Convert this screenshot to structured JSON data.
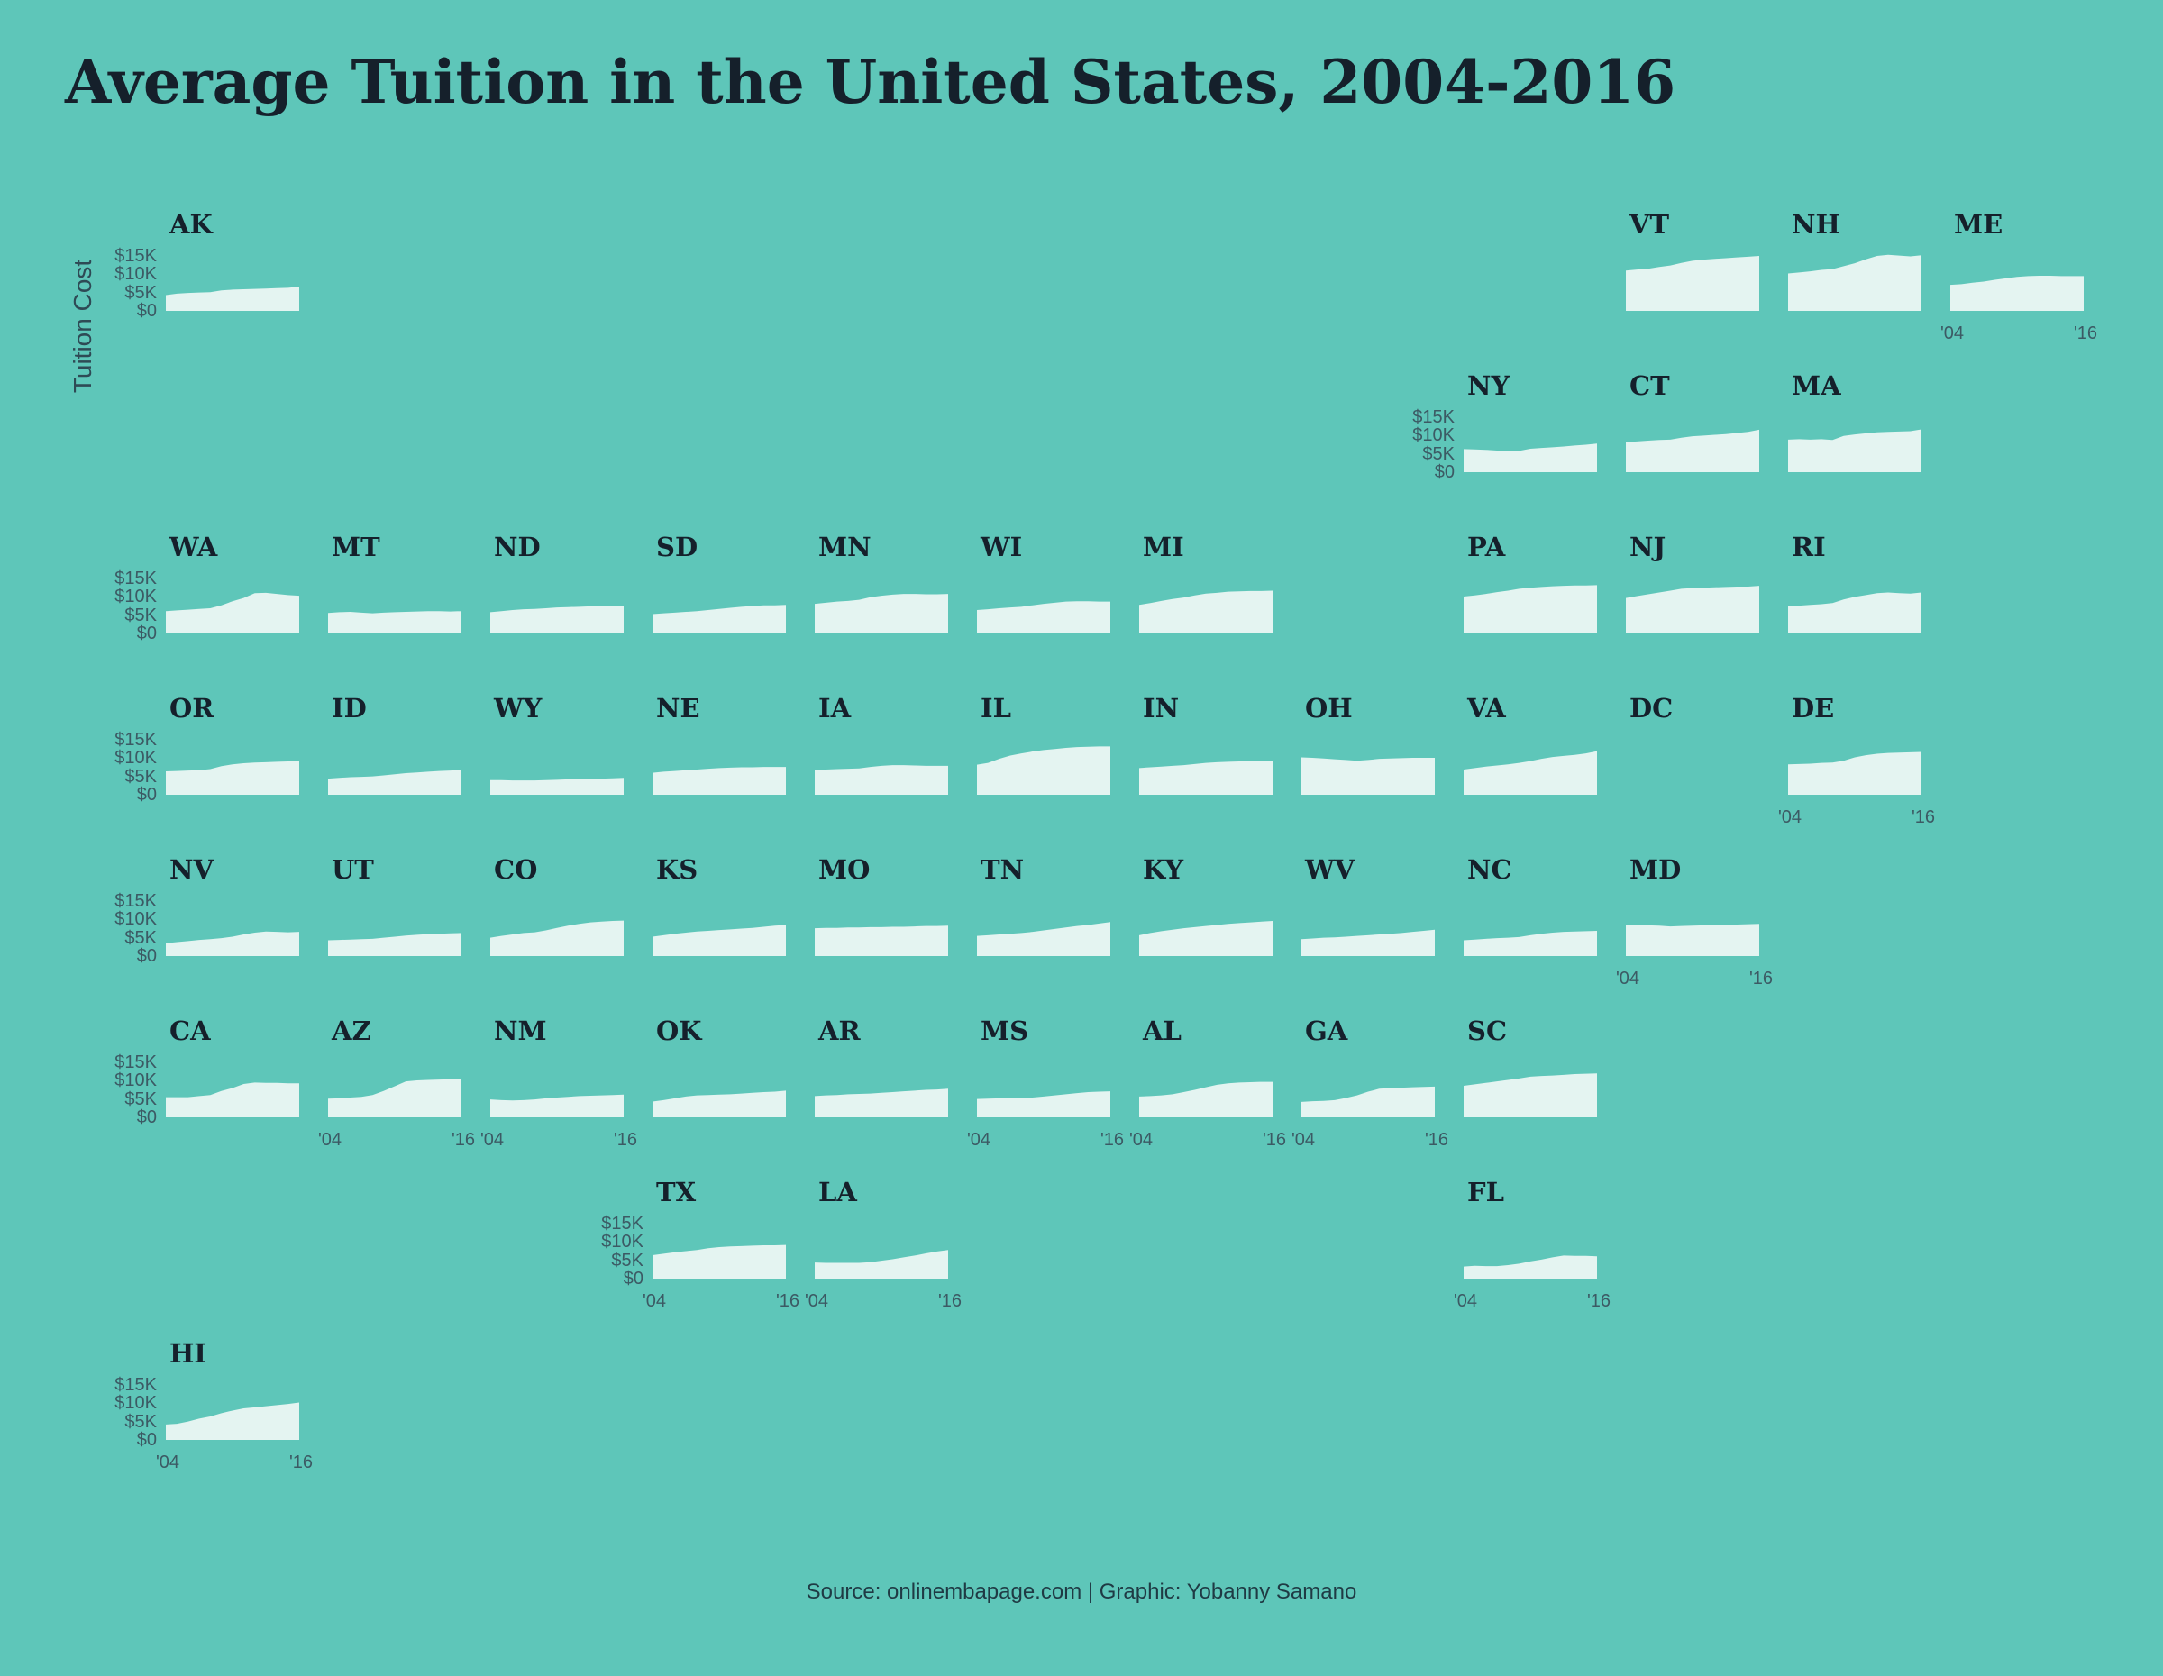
{
  "title": "Average Tuition in the United States, 2004-2016",
  "caption": "Source: onlinembapage.com | Graphic: Yobanny Samano",
  "chart_data": {
    "type": "area",
    "title": "Average Tuition in the United States, 2004-2016",
    "ylabel": "Tuition Cost",
    "xlabel": "",
    "x": [
      2004,
      2005,
      2006,
      2007,
      2008,
      2009,
      2010,
      2011,
      2012,
      2013,
      2014,
      2015,
      2016
    ],
    "x_tick_labels": [
      "'04",
      "'16"
    ],
    "y_tick_labels": [
      "$0",
      "$5K",
      "$10K",
      "$15K"
    ],
    "y_ticks": [
      0,
      5000,
      10000,
      15000
    ],
    "ylim": [
      0,
      15500
    ],
    "fill_color": "#e4f4f1",
    "background_color": "#5ec6b9",
    "panels": [
      {
        "state": "AK",
        "col": 0,
        "row": 0,
        "values": [
          4300,
          4700,
          4900,
          5000,
          5100,
          5600,
          5800,
          5900,
          6000,
          6100,
          6200,
          6300,
          6600
        ]
      },
      {
        "state": "VT",
        "col": 9,
        "row": 0,
        "values": [
          11000,
          11300,
          11500,
          12000,
          12400,
          13100,
          13700,
          14000,
          14200,
          14400,
          14600,
          14800,
          15000
        ]
      },
      {
        "state": "NH",
        "col": 10,
        "row": 0,
        "values": [
          10200,
          10500,
          10800,
          11200,
          11400,
          12200,
          13000,
          14100,
          15000,
          15300,
          15100,
          14900,
          15200
        ]
      },
      {
        "state": "ME",
        "col": 11,
        "row": 0,
        "values": [
          7100,
          7300,
          7700,
          8000,
          8500,
          8900,
          9300,
          9500,
          9600,
          9600,
          9500,
          9500,
          9500
        ]
      },
      {
        "state": "NY",
        "col": 8,
        "row": 1,
        "values": [
          6300,
          6200,
          6100,
          5900,
          5700,
          5800,
          6400,
          6600,
          6800,
          7000,
          7300,
          7500,
          7800
        ]
      },
      {
        "state": "CT",
        "col": 9,
        "row": 1,
        "values": [
          8200,
          8400,
          8600,
          8800,
          8900,
          9400,
          9800,
          10000,
          10200,
          10400,
          10700,
          11000,
          11600
        ]
      },
      {
        "state": "MA",
        "col": 10,
        "row": 1,
        "values": [
          8900,
          9000,
          8900,
          9000,
          8800,
          9900,
          10300,
          10600,
          10900,
          11000,
          11100,
          11200,
          11700
        ]
      },
      {
        "state": "WA",
        "col": 0,
        "row": 2,
        "values": [
          6100,
          6300,
          6500,
          6700,
          6900,
          7700,
          8800,
          9700,
          11000,
          11100,
          10800,
          10500,
          10300
        ]
      },
      {
        "state": "MT",
        "col": 1,
        "row": 2,
        "values": [
          5600,
          5800,
          5900,
          5700,
          5500,
          5700,
          5800,
          5900,
          6000,
          6100,
          6100,
          6000,
          6100
        ]
      },
      {
        "state": "ND",
        "col": 2,
        "row": 2,
        "values": [
          5800,
          6100,
          6400,
          6600,
          6700,
          6900,
          7100,
          7200,
          7300,
          7400,
          7500,
          7500,
          7600
        ]
      },
      {
        "state": "SD",
        "col": 3,
        "row": 2,
        "values": [
          5300,
          5500,
          5700,
          5900,
          6100,
          6400,
          6700,
          7000,
          7300,
          7500,
          7700,
          7700,
          7800
        ]
      },
      {
        "state": "MN",
        "col": 4,
        "row": 2,
        "values": [
          8100,
          8400,
          8700,
          8900,
          9200,
          9900,
          10300,
          10600,
          10800,
          10800,
          10700,
          10700,
          10800
        ]
      },
      {
        "state": "WI",
        "col": 5,
        "row": 2,
        "values": [
          6400,
          6600,
          6900,
          7100,
          7300,
          7700,
          8100,
          8400,
          8700,
          8800,
          8800,
          8700,
          8700
        ]
      },
      {
        "state": "MI",
        "col": 6,
        "row": 2,
        "values": [
          7800,
          8300,
          8900,
          9400,
          9800,
          10400,
          10900,
          11100,
          11400,
          11500,
          11600,
          11600,
          11700
        ]
      },
      {
        "state": "PA",
        "col": 8,
        "row": 2,
        "values": [
          10100,
          10400,
          10800,
          11300,
          11700,
          12200,
          12500,
          12700,
          12900,
          13000,
          13100,
          13100,
          13200
        ]
      },
      {
        "state": "NJ",
        "col": 9,
        "row": 2,
        "values": [
          9700,
          10200,
          10700,
          11200,
          11700,
          12200,
          12400,
          12500,
          12600,
          12700,
          12800,
          12800,
          13000
        ]
      },
      {
        "state": "RI",
        "col": 10,
        "row": 2,
        "values": [
          7400,
          7600,
          7800,
          8000,
          8300,
          9300,
          10000,
          10500,
          11000,
          11200,
          11000,
          10900,
          11200
        ]
      },
      {
        "state": "OR",
        "col": 0,
        "row": 3,
        "values": [
          6400,
          6500,
          6600,
          6700,
          7000,
          7800,
          8300,
          8600,
          8800,
          8900,
          9000,
          9100,
          9300
        ]
      },
      {
        "state": "ID",
        "col": 1,
        "row": 3,
        "values": [
          4400,
          4600,
          4800,
          4900,
          5000,
          5300,
          5600,
          5900,
          6100,
          6300,
          6500,
          6600,
          6800
        ]
      },
      {
        "state": "WY",
        "col": 2,
        "row": 3,
        "values": [
          4000,
          4000,
          3900,
          3900,
          3900,
          4000,
          4100,
          4200,
          4300,
          4300,
          4400,
          4500,
          4600
        ]
      },
      {
        "state": "NE",
        "col": 3,
        "row": 3,
        "values": [
          6000,
          6300,
          6500,
          6700,
          6900,
          7100,
          7300,
          7400,
          7500,
          7500,
          7600,
          7600,
          7600
        ]
      },
      {
        "state": "IA",
        "col": 4,
        "row": 3,
        "values": [
          6800,
          6900,
          7000,
          7100,
          7200,
          7600,
          7900,
          8100,
          8100,
          8000,
          7900,
          7900,
          7900
        ]
      },
      {
        "state": "IL",
        "col": 5,
        "row": 3,
        "values": [
          8200,
          8700,
          9800,
          10700,
          11300,
          11800,
          12200,
          12500,
          12800,
          13000,
          13100,
          13200,
          13200
        ]
      },
      {
        "state": "IN",
        "col": 6,
        "row": 3,
        "values": [
          7300,
          7500,
          7700,
          7900,
          8100,
          8400,
          8700,
          8900,
          9000,
          9100,
          9100,
          9100,
          9100
        ]
      },
      {
        "state": "OH",
        "col": 7,
        "row": 3,
        "values": [
          10200,
          10100,
          9900,
          9700,
          9500,
          9300,
          9500,
          9800,
          9900,
          10000,
          10100,
          10100,
          10100
        ]
      },
      {
        "state": "VA",
        "col": 8,
        "row": 3,
        "values": [
          6900,
          7300,
          7700,
          8000,
          8300,
          8700,
          9200,
          9800,
          10300,
          10600,
          10900,
          11300,
          11900
        ]
      },
      {
        "state": "DE",
        "col": 10,
        "row": 3,
        "values": [
          8300,
          8400,
          8500,
          8700,
          8800,
          9300,
          10200,
          10800,
          11200,
          11400,
          11500,
          11600,
          11700
        ]
      },
      {
        "state": "NV",
        "col": 0,
        "row": 4,
        "values": [
          3500,
          3800,
          4100,
          4400,
          4600,
          4900,
          5300,
          5900,
          6400,
          6700,
          6600,
          6500,
          6600
        ]
      },
      {
        "state": "UT",
        "col": 1,
        "row": 4,
        "values": [
          4300,
          4400,
          4500,
          4600,
          4700,
          5000,
          5300,
          5600,
          5800,
          6000,
          6100,
          6200,
          6300
        ]
      },
      {
        "state": "CO",
        "col": 2,
        "row": 4,
        "values": [
          5000,
          5500,
          5900,
          6300,
          6500,
          7000,
          7700,
          8300,
          8800,
          9200,
          9400,
          9600,
          9700
        ]
      },
      {
        "state": "KS",
        "col": 3,
        "row": 4,
        "values": [
          5300,
          5700,
          6100,
          6400,
          6700,
          6900,
          7100,
          7300,
          7500,
          7700,
          8000,
          8300,
          8500
        ]
      },
      {
        "state": "MO",
        "col": 4,
        "row": 4,
        "values": [
          7600,
          7700,
          7700,
          7800,
          7800,
          7900,
          7900,
          8000,
          8000,
          8100,
          8200,
          8200,
          8300
        ]
      },
      {
        "state": "TN",
        "col": 5,
        "row": 4,
        "values": [
          5500,
          5700,
          5900,
          6100,
          6300,
          6600,
          7000,
          7400,
          7800,
          8200,
          8500,
          8900,
          9300
        ]
      },
      {
        "state": "KY",
        "col": 6,
        "row": 4,
        "values": [
          5700,
          6300,
          6800,
          7200,
          7600,
          7900,
          8200,
          8500,
          8800,
          9000,
          9200,
          9400,
          9600
        ]
      },
      {
        "state": "WV",
        "col": 7,
        "row": 4,
        "values": [
          4600,
          4800,
          5000,
          5100,
          5300,
          5500,
          5700,
          5900,
          6100,
          6300,
          6600,
          6900,
          7200
        ]
      },
      {
        "state": "NC",
        "col": 8,
        "row": 4,
        "values": [
          4300,
          4500,
          4700,
          4900,
          5000,
          5200,
          5700,
          6100,
          6400,
          6600,
          6700,
          6800,
          6900
        ]
      },
      {
        "state": "MD",
        "col": 9,
        "row": 4,
        "values": [
          8500,
          8500,
          8400,
          8300,
          8100,
          8200,
          8300,
          8400,
          8400,
          8500,
          8600,
          8700,
          8800
        ]
      },
      {
        "state": "CA",
        "col": 0,
        "row": 5,
        "values": [
          5500,
          5500,
          5500,
          5800,
          6100,
          7200,
          8000,
          9100,
          9500,
          9400,
          9400,
          9300,
          9300
        ]
      },
      {
        "state": "AZ",
        "col": 1,
        "row": 5,
        "values": [
          5100,
          5200,
          5400,
          5600,
          6100,
          7200,
          8500,
          9800,
          10100,
          10200,
          10300,
          10400,
          10500
        ]
      },
      {
        "state": "NM",
        "col": 2,
        "row": 5,
        "values": [
          4900,
          4700,
          4600,
          4700,
          4900,
          5200,
          5400,
          5600,
          5800,
          5900,
          6000,
          6100,
          6200
        ]
      },
      {
        "state": "OK",
        "col": 3,
        "row": 5,
        "values": [
          4300,
          4700,
          5200,
          5700,
          6000,
          6100,
          6200,
          6300,
          6500,
          6700,
          6900,
          7000,
          7300
        ]
      },
      {
        "state": "AR",
        "col": 4,
        "row": 5,
        "values": [
          5800,
          6000,
          6100,
          6300,
          6400,
          6500,
          6700,
          6900,
          7100,
          7300,
          7500,
          7600,
          7800
        ]
      },
      {
        "state": "MS",
        "col": 5,
        "row": 5,
        "values": [
          5000,
          5100,
          5200,
          5300,
          5400,
          5400,
          5700,
          6000,
          6300,
          6600,
          6900,
          7000,
          7100
        ]
      },
      {
        "state": "AL",
        "col": 6,
        "row": 5,
        "values": [
          5700,
          5800,
          6000,
          6300,
          6900,
          7500,
          8200,
          8900,
          9300,
          9500,
          9600,
          9700,
          9700
        ]
      },
      {
        "state": "GA",
        "col": 7,
        "row": 5,
        "values": [
          4200,
          4400,
          4500,
          4700,
          5300,
          6000,
          7000,
          7800,
          8000,
          8100,
          8200,
          8300,
          8400
        ]
      },
      {
        "state": "SC",
        "col": 8,
        "row": 5,
        "values": [
          8600,
          9000,
          9400,
          9800,
          10200,
          10600,
          11100,
          11300,
          11400,
          11600,
          11800,
          11900,
          12000
        ]
      },
      {
        "state": "TX",
        "col": 3,
        "row": 6,
        "values": [
          6400,
          6800,
          7200,
          7500,
          7800,
          8300,
          8600,
          8800,
          8900,
          9000,
          9100,
          9100,
          9200
        ]
      },
      {
        "state": "LA",
        "col": 4,
        "row": 6,
        "values": [
          4400,
          4300,
          4300,
          4300,
          4300,
          4500,
          4900,
          5300,
          5800,
          6300,
          6900,
          7400,
          7800
        ]
      },
      {
        "state": "FL",
        "col": 8,
        "row": 6,
        "values": [
          3300,
          3500,
          3400,
          3400,
          3700,
          4100,
          4700,
          5200,
          5800,
          6300,
          6200,
          6200,
          6100
        ]
      },
      {
        "state": "HI",
        "col": 0,
        "row": 7,
        "values": [
          4200,
          4400,
          5000,
          5800,
          6400,
          7300,
          8000,
          8600,
          8900,
          9200,
          9500,
          9800,
          10200
        ]
      }
    ],
    "empty_panels": [
      {
        "state": "DC",
        "col": 9,
        "row": 3
      }
    ],
    "y_axis_panels": [
      "AK",
      "NY",
      "WA",
      "OR",
      "NV",
      "CA",
      "TX",
      "HI"
    ],
    "x_axis_panels": [
      "ME",
      "DE",
      "MD",
      "AZ",
      "NM",
      "MS",
      "AL",
      "GA",
      "TX",
      "LA",
      "FL",
      "HI"
    ]
  }
}
